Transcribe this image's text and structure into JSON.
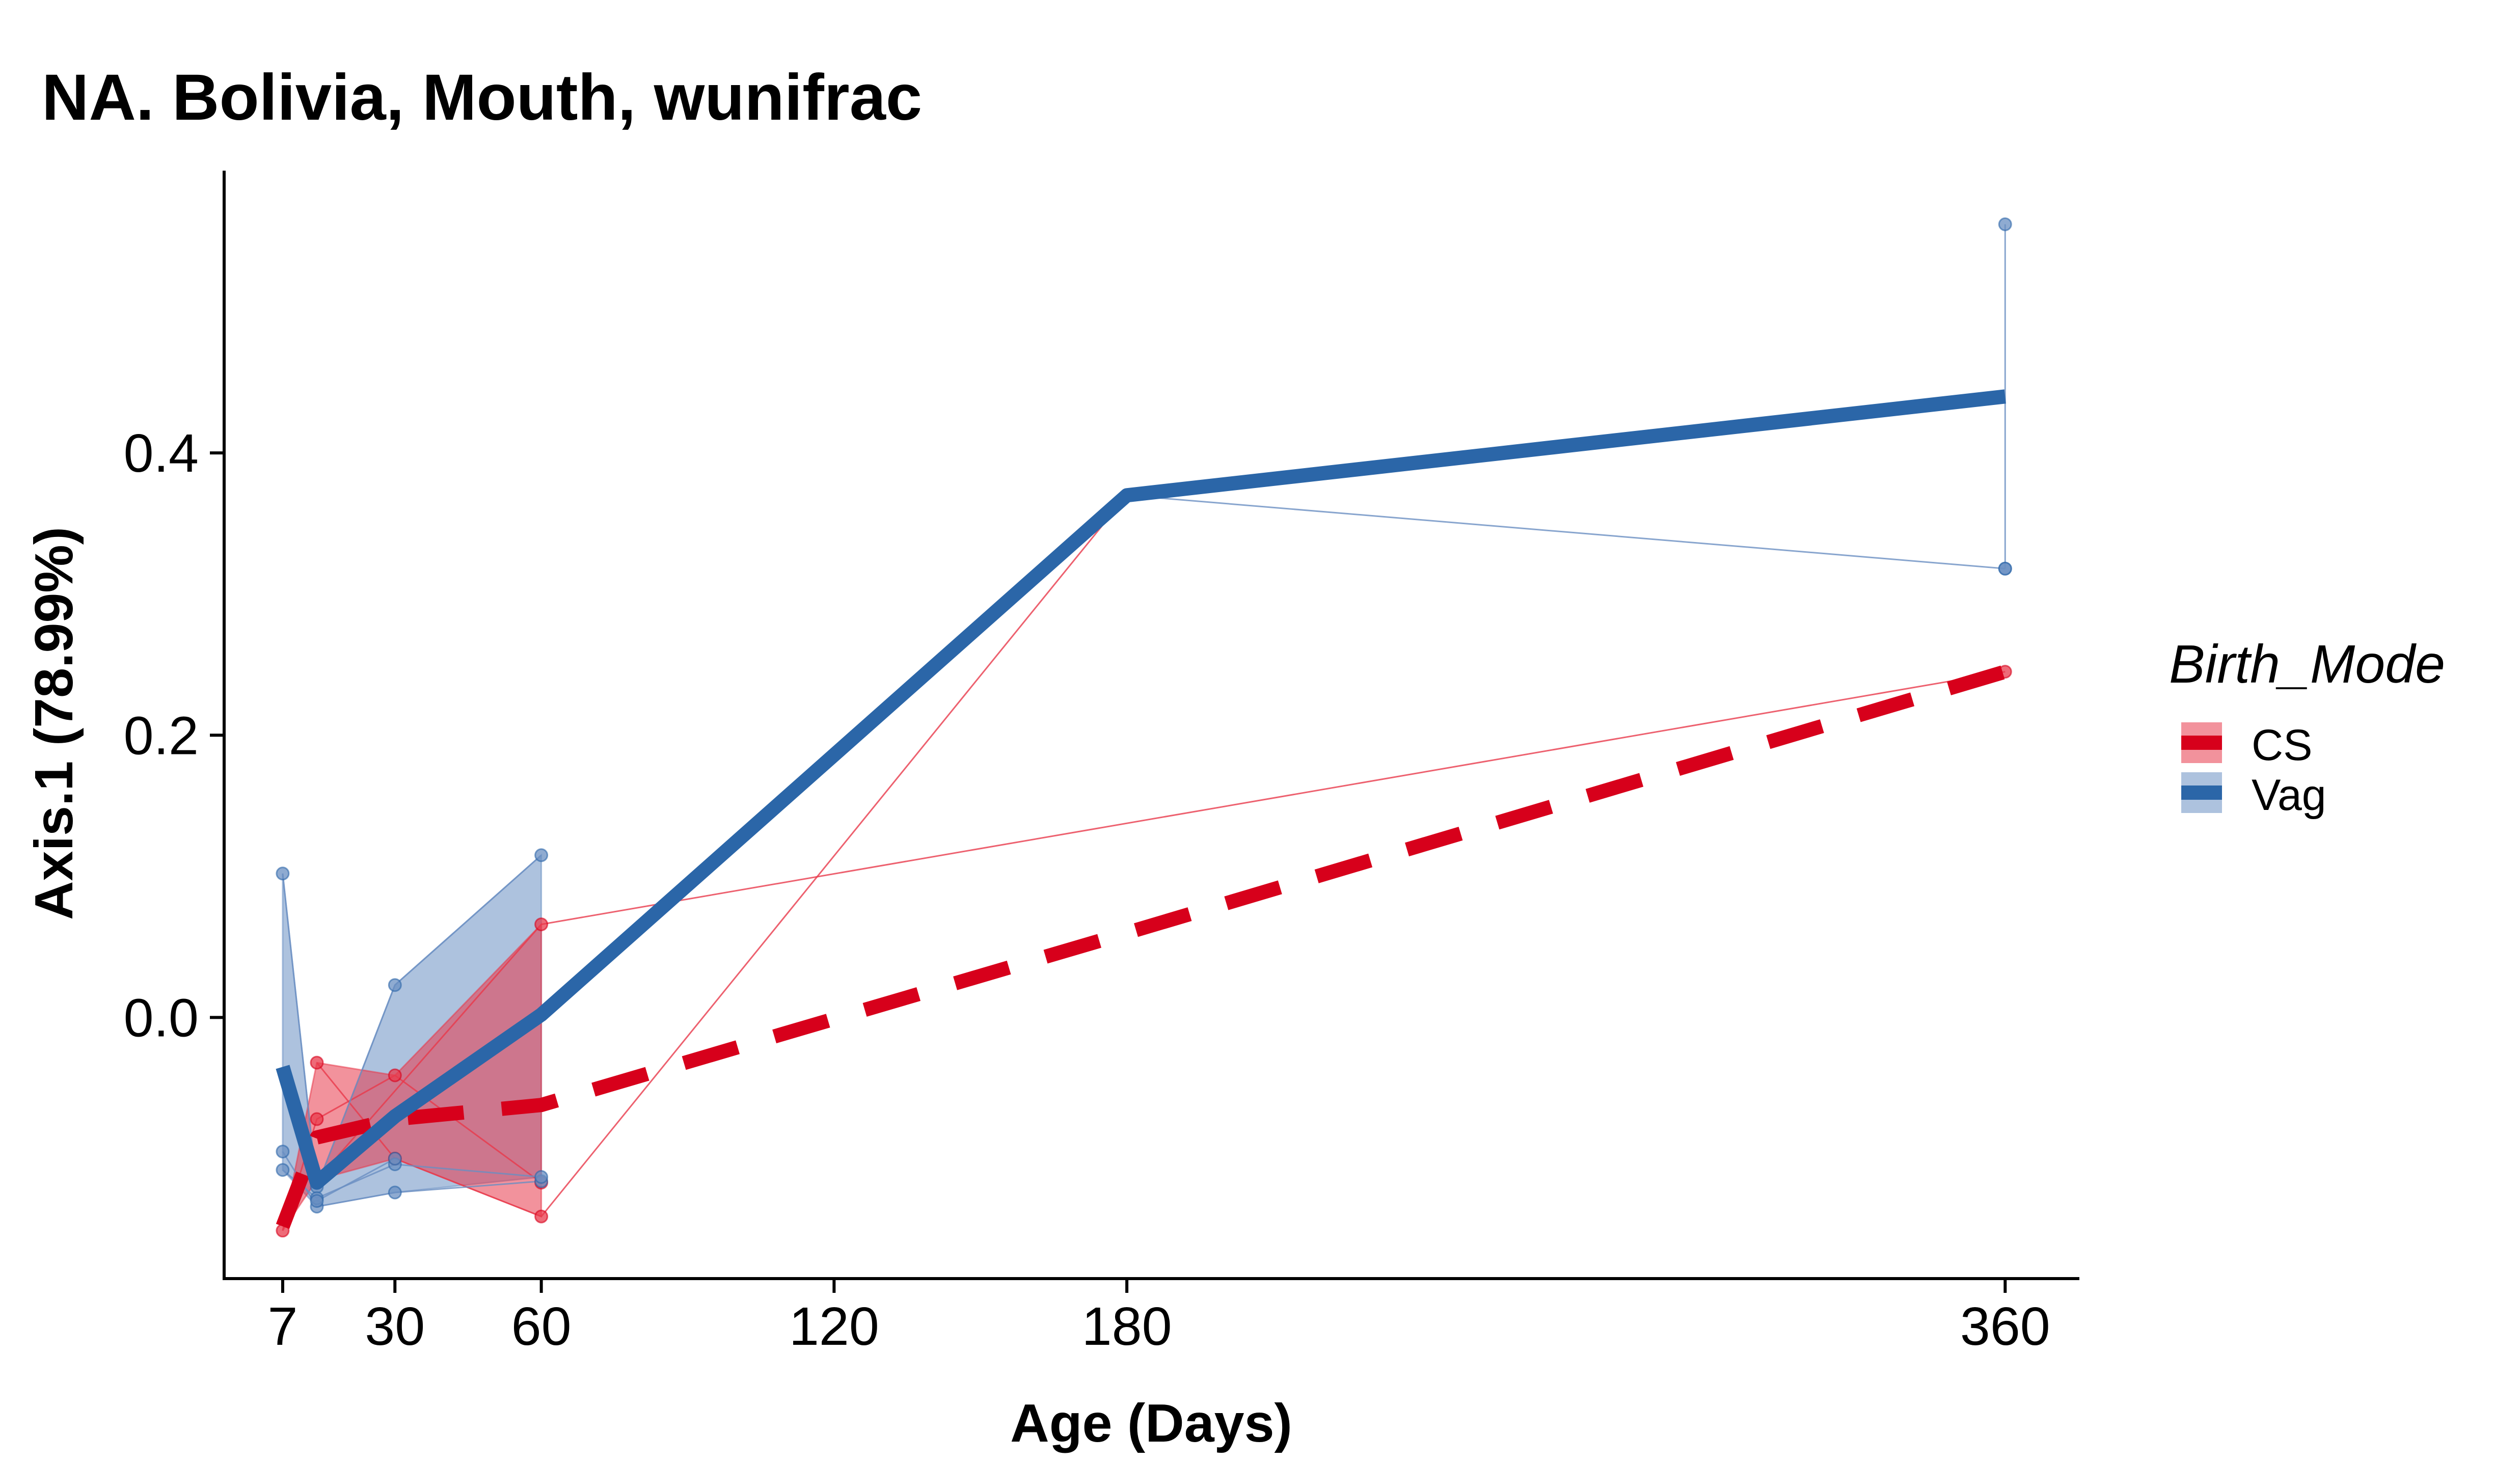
{
  "chart_data": {
    "type": "line",
    "title": "NA. Bolivia, Mouth, wunifrac",
    "xlabel": "Age (Days)",
    "ylabel": "Axis.1 (78.99%)",
    "xlim": [
      -5,
      375
    ],
    "ylim": [
      -0.185,
      0.6
    ],
    "x_ticks": [
      7,
      30,
      60,
      120,
      180,
      360
    ],
    "y_ticks": [
      0.0,
      0.2,
      0.4
    ],
    "y_tick_labels": [
      "0.0",
      "0.2",
      "0.4"
    ],
    "grid": false,
    "legend": {
      "title": "Birth_Mode",
      "position": "right",
      "entries": [
        "CS",
        "Vag"
      ]
    },
    "series": [
      {
        "name": "CS",
        "color": "#d7001b",
        "band_color": "#e8394b",
        "line_style": "dashed",
        "mean_line": [
          {
            "x": 7,
            "y": -0.148
          },
          {
            "x": 14,
            "y": -0.085
          },
          {
            "x": 30,
            "y": -0.072
          },
          {
            "x": 60,
            "y": -0.062
          },
          {
            "x": 180,
            "y": 0.06
          },
          {
            "x": 360,
            "y": 0.245
          }
        ],
        "band": [
          {
            "x": 7,
            "lo": -0.151,
            "hi": -0.151
          },
          {
            "x": 14,
            "lo": -0.115,
            "hi": -0.032
          },
          {
            "x": 30,
            "lo": -0.1,
            "hi": -0.041
          },
          {
            "x": 60,
            "lo": -0.141,
            "hi": 0.066
          }
        ],
        "subjects": [
          [
            {
              "x": 7,
              "y": -0.151
            },
            {
              "x": 14,
              "y": -0.072
            },
            {
              "x": 30,
              "y": -0.041
            },
            {
              "x": 60,
              "y": -0.117
            }
          ],
          [
            {
              "x": 14,
              "y": -0.032
            },
            {
              "x": 30,
              "y": -0.1
            },
            {
              "x": 60,
              "y": -0.141
            },
            {
              "x": 180,
              "y": 0.37
            }
          ],
          [
            {
              "x": 14,
              "y": -0.115
            },
            {
              "x": 60,
              "y": 0.066
            },
            {
              "x": 360,
              "y": 0.245
            }
          ]
        ]
      },
      {
        "name": "Vag",
        "color": "#2b66a8",
        "band_color": "#6a8fc2",
        "line_style": "solid",
        "mean_line": [
          {
            "x": 7,
            "y": -0.035
          },
          {
            "x": 14,
            "y": -0.117
          },
          {
            "x": 30,
            "y": -0.07
          },
          {
            "x": 60,
            "y": 0.002
          },
          {
            "x": 180,
            "y": 0.37
          },
          {
            "x": 360,
            "y": 0.44
          }
        ],
        "band": [
          {
            "x": 7,
            "lo": -0.108,
            "hi": 0.102
          },
          {
            "x": 14,
            "lo": -0.134,
            "hi": -0.12
          },
          {
            "x": 30,
            "lo": -0.124,
            "hi": 0.023
          },
          {
            "x": 60,
            "lo": -0.113,
            "hi": 0.115
          }
        ],
        "subjects": [
          [
            {
              "x": 7,
              "y": 0.102
            },
            {
              "x": 14,
              "y": -0.12
            },
            {
              "x": 30,
              "y": 0.023
            },
            {
              "x": 60,
              "y": 0.115
            }
          ],
          [
            {
              "x": 7,
              "y": -0.095
            },
            {
              "x": 14,
              "y": -0.134
            },
            {
              "x": 30,
              "y": -0.124
            },
            {
              "x": 60,
              "y": -0.116
            }
          ],
          [
            {
              "x": 7,
              "y": -0.108
            },
            {
              "x": 14,
              "y": -0.128
            },
            {
              "x": 30,
              "y": -0.104
            },
            {
              "x": 60,
              "y": -0.113
            }
          ],
          [
            {
              "x": 14,
              "y": -0.13
            },
            {
              "x": 30,
              "y": -0.1
            }
          ],
          [
            {
              "x": 180,
              "y": 0.37
            },
            {
              "x": 360,
              "y": 0.318
            }
          ],
          [
            {
              "x": 360,
              "y": 0.562
            },
            {
              "x": 360,
              "y": 0.318
            }
          ]
        ]
      }
    ]
  }
}
